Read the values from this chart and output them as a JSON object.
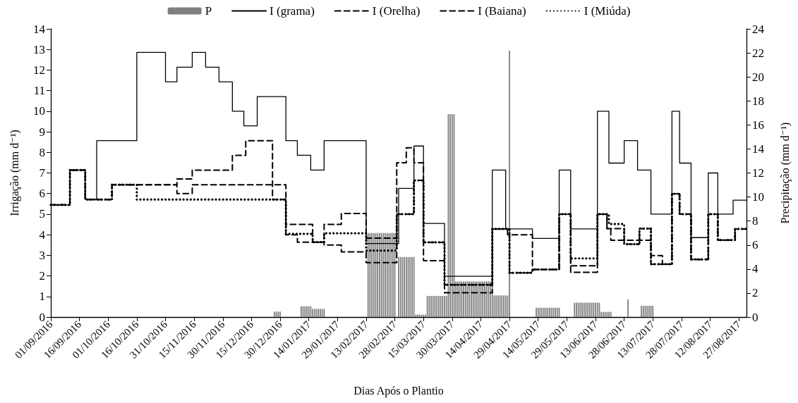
{
  "chart_data": {
    "type": "step",
    "xlabel": "Dias Após o Plantio",
    "ylabel": "Irrigação (mm d⁻¹)",
    "y2label": "Precipitação (mm d⁻¹)",
    "xlim": [
      "2016-09-01",
      "2017-08-31"
    ],
    "xticks": [
      {
        "value": "2016-09-01",
        "label": "01/09/2016"
      },
      {
        "value": "2016-09-16",
        "label": "16/09/2016"
      },
      {
        "value": "2016-10-01",
        "label": "01/10/2016"
      },
      {
        "value": "2016-10-16",
        "label": "16/10/2016"
      },
      {
        "value": "2016-10-31",
        "label": "31/10/2016"
      },
      {
        "value": "2016-11-15",
        "label": "15/11/2016"
      },
      {
        "value": "2016-11-30",
        "label": "30/11/2016"
      },
      {
        "value": "2016-12-15",
        "label": "15/12/2016"
      },
      {
        "value": "2016-12-30",
        "label": "30/12/2016"
      },
      {
        "value": "2017-01-14",
        "label": "14/01/2017"
      },
      {
        "value": "2017-01-29",
        "label": "29/01/2017"
      },
      {
        "value": "2017-02-13",
        "label": "13/02/2017"
      },
      {
        "value": "2017-02-28",
        "label": "28/02/2017"
      },
      {
        "value": "2017-03-15",
        "label": "15/03/2017"
      },
      {
        "value": "2017-03-30",
        "label": "30/03/2017"
      },
      {
        "value": "2017-04-14",
        "label": "14/04/2017"
      },
      {
        "value": "2017-04-29",
        "label": "29/04/2017"
      },
      {
        "value": "2017-05-14",
        "label": "14/05/2017"
      },
      {
        "value": "2017-05-29",
        "label": "29/05/2017"
      },
      {
        "value": "2017-06-13",
        "label": "13/06/2017"
      },
      {
        "value": "2017-06-28",
        "label": "28/06/2017"
      },
      {
        "value": "2017-07-13",
        "label": "13/07/2017"
      },
      {
        "value": "2017-07-28",
        "label": "28/07/2017"
      },
      {
        "value": "2017-08-12",
        "label": "12/08/2017"
      },
      {
        "value": "2017-08-27",
        "label": "27/08/2017"
      }
    ],
    "ylim": [
      0,
      14
    ],
    "yticks": [
      0,
      1,
      2,
      3,
      4,
      5,
      6,
      7,
      8,
      9,
      10,
      11,
      12,
      13,
      14
    ],
    "y2lim": [
      0,
      24
    ],
    "y2ticks": [
      0,
      2,
      4,
      6,
      8,
      10,
      12,
      14,
      16,
      18,
      20,
      22,
      24
    ],
    "legend": "top",
    "grid": false,
    "marker": "none",
    "series": [
      {
        "name": "P",
        "type": "bar",
        "axis": "y2",
        "color": "#808080",
        "x": [
          "2016-12-27",
          "2016-12-28",
          "2016-12-29",
          "2016-12-30",
          "2017-01-10",
          "2017-01-11",
          "2017-01-12",
          "2017-01-13",
          "2017-01-14",
          "2017-01-15",
          "2017-01-16",
          "2017-01-17",
          "2017-01-18",
          "2017-01-19",
          "2017-01-20",
          "2017-01-21",
          "2017-01-22",
          "2017-02-14",
          "2017-02-15",
          "2017-02-16",
          "2017-02-17",
          "2017-02-18",
          "2017-02-19",
          "2017-02-20",
          "2017-02-21",
          "2017-02-22",
          "2017-02-23",
          "2017-02-24",
          "2017-02-25",
          "2017-02-26",
          "2017-02-27",
          "2017-02-28",
          "2017-03-02",
          "2017-03-03",
          "2017-03-04",
          "2017-03-05",
          "2017-03-06",
          "2017-03-07",
          "2017-03-08",
          "2017-03-09",
          "2017-03-10",
          "2017-03-11",
          "2017-03-12",
          "2017-03-13",
          "2017-03-14",
          "2017-03-15",
          "2017-03-16",
          "2017-03-17",
          "2017-03-18",
          "2017-03-19",
          "2017-03-20",
          "2017-03-21",
          "2017-03-22",
          "2017-03-23",
          "2017-03-24",
          "2017-03-25",
          "2017-03-26",
          "2017-03-27",
          "2017-03-28",
          "2017-03-29",
          "2017-03-30",
          "2017-03-31",
          "2017-04-01",
          "2017-04-02",
          "2017-04-03",
          "2017-04-04",
          "2017-04-05",
          "2017-04-06",
          "2017-04-07",
          "2017-04-08",
          "2017-04-09",
          "2017-04-10",
          "2017-04-11",
          "2017-04-12",
          "2017-04-13",
          "2017-04-14",
          "2017-04-15",
          "2017-04-16",
          "2017-04-17",
          "2017-04-18",
          "2017-04-19",
          "2017-04-20",
          "2017-04-21",
          "2017-04-22",
          "2017-04-23",
          "2017-04-24",
          "2017-04-25",
          "2017-04-26",
          "2017-04-27",
          "2017-04-28",
          "2017-04-29",
          "2017-05-13",
          "2017-05-14",
          "2017-05-15",
          "2017-05-16",
          "2017-05-17",
          "2017-05-18",
          "2017-05-19",
          "2017-05-20",
          "2017-05-21",
          "2017-05-22",
          "2017-05-23",
          "2017-05-24",
          "2017-05-25",
          "2017-06-02",
          "2017-06-03",
          "2017-06-04",
          "2017-06-05",
          "2017-06-06",
          "2017-06-07",
          "2017-06-08",
          "2017-06-09",
          "2017-06-10",
          "2017-06-11",
          "2017-06-12",
          "2017-06-13",
          "2017-06-14",
          "2017-06-15",
          "2017-06-16",
          "2017-06-17",
          "2017-06-18",
          "2017-06-19",
          "2017-06-20",
          "2017-06-21",
          "2017-06-30",
          "2017-07-07",
          "2017-07-08",
          "2017-07-09",
          "2017-07-10",
          "2017-07-11",
          "2017-07-12",
          "2017-07-13"
        ],
        "values": [
          0.45,
          0.45,
          0.45,
          0.45,
          0.9,
          0.9,
          0.9,
          0.9,
          0.9,
          0.9,
          0.68,
          0.68,
          0.68,
          0.68,
          0.68,
          0.68,
          0.68,
          7.0,
          7.0,
          7.0,
          7.0,
          7.0,
          7.0,
          7.0,
          7.0,
          7.0,
          7.0,
          7.0,
          7.0,
          7.0,
          7.0,
          7.0,
          5.0,
          5.0,
          5.0,
          5.0,
          5.0,
          5.0,
          5.0,
          5.0,
          5.0,
          0.2,
          0.2,
          0.2,
          0.2,
          0.2,
          0.2,
          1.76,
          1.76,
          1.76,
          1.76,
          1.76,
          1.76,
          1.76,
          1.76,
          1.76,
          1.76,
          1.76,
          16.9,
          16.9,
          16.9,
          16.9,
          2.97,
          2.97,
          2.97,
          2.97,
          2.97,
          2.97,
          2.97,
          2.97,
          2.97,
          2.97,
          2.97,
          2.97,
          2.97,
          2.97,
          2.97,
          2.97,
          2.97,
          2.97,
          2.97,
          2.97,
          1.8,
          1.8,
          1.8,
          1.8,
          1.8,
          1.8,
          1.8,
          1.8,
          22.2,
          0.78,
          0.78,
          0.78,
          0.78,
          0.78,
          0.78,
          0.78,
          0.78,
          0.78,
          0.78,
          0.78,
          0.78,
          0.78,
          1.2,
          1.2,
          1.2,
          1.2,
          1.2,
          1.2,
          1.2,
          1.2,
          1.2,
          1.2,
          1.2,
          1.2,
          1.2,
          1.2,
          0.43,
          0.43,
          0.43,
          0.43,
          0.43,
          0.43,
          1.47,
          0.94,
          0.94,
          0.94,
          0.94,
          0.94,
          0.94,
          0.94
        ]
      },
      {
        "name": "I (grama)",
        "color": "#000000",
        "line_style": "solid",
        "x": [
          "2016-09-01",
          "2016-09-11",
          "2016-09-19",
          "2016-09-25",
          "2016-10-16",
          "2016-10-31",
          "2016-11-06",
          "2016-11-14",
          "2016-11-21",
          "2016-11-28",
          "2016-12-05",
          "2016-12-11",
          "2016-12-18",
          "2017-01-02",
          "2017-01-08",
          "2017-01-15",
          "2017-01-22",
          "2017-02-13",
          "2017-03-02",
          "2017-03-10",
          "2017-03-15",
          "2017-03-26",
          "2017-04-20",
          "2017-04-27",
          "2017-05-11",
          "2017-05-25",
          "2017-05-31",
          "2017-06-14",
          "2017-06-20",
          "2017-06-28",
          "2017-07-05",
          "2017-07-12",
          "2017-07-23",
          "2017-07-27",
          "2017-08-02",
          "2017-08-11",
          "2017-08-16",
          "2017-08-24",
          "2017-08-31"
        ],
        "values": [
          5.45,
          7.14,
          5.71,
          8.57,
          12.86,
          11.43,
          12.14,
          12.86,
          12.14,
          11.43,
          10.0,
          9.29,
          10.71,
          8.57,
          7.86,
          7.14,
          8.57,
          3.57,
          6.25,
          8.31,
          4.55,
          1.98,
          7.14,
          4.28,
          3.82,
          7.14,
          4.28,
          10.0,
          7.48,
          8.57,
          7.14,
          5.0,
          10.0,
          7.48,
          3.86,
          7.0,
          5.0,
          5.68,
          5.68
        ]
      },
      {
        "name": "I (Orelha)",
        "color": "#000000",
        "line_style": "dashed",
        "x": [
          "2016-09-01",
          "2016-09-11",
          "2016-09-19",
          "2016-10-03",
          "2016-11-06",
          "2016-11-14",
          "2016-12-05",
          "2016-12-12",
          "2016-12-26",
          "2017-01-02",
          "2017-01-08",
          "2017-01-22",
          "2017-01-31",
          "2017-02-13",
          "2017-03-01",
          "2017-03-06",
          "2017-03-10",
          "2017-03-15",
          "2017-03-26",
          "2017-04-20",
          "2017-04-28",
          "2017-05-11",
          "2017-05-25",
          "2017-05-31",
          "2017-06-14",
          "2017-06-19",
          "2017-06-21",
          "2017-07-12",
          "2017-07-18",
          "2017-07-23",
          "2017-07-27",
          "2017-08-02",
          "2017-08-11",
          "2017-08-16",
          "2017-08-25",
          "2017-08-31"
        ],
        "values": [
          5.45,
          7.14,
          5.71,
          6.43,
          6.71,
          7.14,
          7.86,
          8.57,
          5.71,
          4.0,
          3.64,
          3.5,
          3.17,
          2.64,
          7.5,
          8.22,
          7.5,
          2.74,
          1.18,
          4.28,
          4.0,
          2.31,
          5.0,
          2.17,
          5.0,
          4.3,
          3.73,
          2.99,
          2.57,
          5.99,
          5.0,
          2.8,
          5.0,
          3.74,
          4.28,
          4.28
        ]
      },
      {
        "name": "I (Baiana)",
        "color": "#000000",
        "line_style": "dashed",
        "x": [
          "2016-09-01",
          "2016-09-11",
          "2016-09-19",
          "2016-10-03",
          "2016-11-06",
          "2016-11-14",
          "2017-01-02",
          "2017-01-16",
          "2017-01-22",
          "2017-01-31",
          "2017-02-13",
          "2017-03-01",
          "2017-03-10",
          "2017-03-15",
          "2017-03-26",
          "2017-04-20",
          "2017-04-29",
          "2017-05-11",
          "2017-05-25",
          "2017-05-31",
          "2017-06-14",
          "2017-06-19",
          "2017-06-28",
          "2017-07-06",
          "2017-07-12",
          "2017-07-23",
          "2017-07-27",
          "2017-08-02",
          "2017-08-11",
          "2017-08-16",
          "2017-08-25",
          "2017-08-31"
        ],
        "values": [
          5.45,
          7.14,
          5.71,
          6.43,
          6.0,
          6.43,
          4.5,
          3.64,
          4.5,
          5.03,
          3.83,
          5.0,
          6.64,
          3.63,
          1.57,
          4.28,
          2.15,
          2.31,
          5.0,
          2.49,
          5.0,
          4.3,
          3.54,
          4.3,
          2.57,
          5.99,
          5.0,
          2.8,
          5.0,
          3.74,
          4.28,
          4.28
        ]
      },
      {
        "name": "I (Miúda)",
        "color": "#000000",
        "line_style": "dotted",
        "x": [
          "2016-09-01",
          "2016-09-11",
          "2016-09-19",
          "2016-10-03",
          "2016-10-16",
          "2017-01-02",
          "2017-01-16",
          "2017-01-22",
          "2017-02-13",
          "2017-03-01",
          "2017-03-10",
          "2017-03-15",
          "2017-03-26",
          "2017-04-20",
          "2017-04-29",
          "2017-05-11",
          "2017-05-25",
          "2017-05-31",
          "2017-06-14",
          "2017-06-20",
          "2017-06-28",
          "2017-07-06",
          "2017-07-12",
          "2017-07-23",
          "2017-07-27",
          "2017-08-02",
          "2017-08-11",
          "2017-08-16",
          "2017-08-25",
          "2017-08-31"
        ],
        "values": [
          5.45,
          7.14,
          5.71,
          6.43,
          5.71,
          4.04,
          3.64,
          4.07,
          3.23,
          5.0,
          6.64,
          3.63,
          1.57,
          4.28,
          2.15,
          2.31,
          5.0,
          2.85,
          5.0,
          4.52,
          3.54,
          4.3,
          2.57,
          5.99,
          5.0,
          2.8,
          5.0,
          3.74,
          4.28,
          4.28
        ]
      }
    ]
  }
}
